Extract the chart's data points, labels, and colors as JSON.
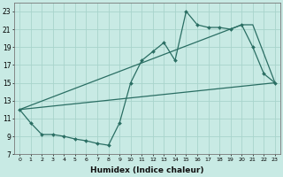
{
  "xlabel": "Humidex (Indice chaleur)",
  "xlim": [
    -0.5,
    23.5
  ],
  "ylim": [
    7,
    24
  ],
  "yticks": [
    7,
    9,
    11,
    13,
    15,
    17,
    19,
    21,
    23
  ],
  "xticks": [
    0,
    1,
    2,
    3,
    4,
    5,
    6,
    7,
    8,
    9,
    10,
    11,
    12,
    13,
    14,
    15,
    16,
    17,
    18,
    19,
    20,
    21,
    22,
    23
  ],
  "bg_color": "#c8eae4",
  "grid_color": "#a8d4cc",
  "line_color": "#2a6e63",
  "line1_x": [
    0,
    1,
    2,
    3,
    4,
    5,
    6,
    7,
    8,
    9,
    10,
    11,
    12,
    13,
    14,
    15,
    16,
    17,
    18,
    19,
    20,
    21,
    22,
    23
  ],
  "line1_y": [
    12.0,
    10.5,
    9.2,
    9.2,
    9.0,
    8.7,
    8.5,
    8.2,
    8.0,
    10.5,
    15.0,
    17.5,
    18.5,
    19.5,
    17.5,
    23.0,
    21.5,
    21.2,
    21.2,
    21.0,
    21.5,
    19.0,
    16.0,
    15.0
  ],
  "line2_x": [
    0,
    20,
    21,
    23
  ],
  "line2_y": [
    12.0,
    21.5,
    21.5,
    15.0
  ],
  "line3_x": [
    0,
    23
  ],
  "line3_y": [
    12.0,
    15.0
  ]
}
